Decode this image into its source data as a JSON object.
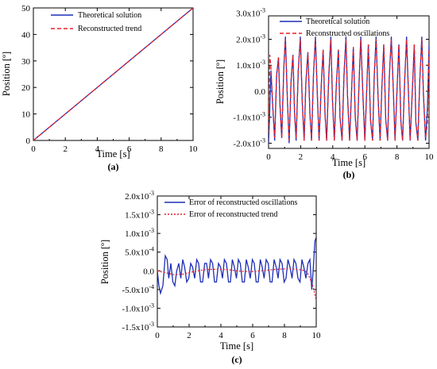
{
  "chart_data": [
    {
      "id": "a",
      "type": "line",
      "caption": "(a)",
      "xlabel": "Time [s]",
      "ylabel": "Position [º]",
      "xlim": [
        0,
        10
      ],
      "ylim": [
        0,
        50
      ],
      "xticks": [
        0,
        2,
        4,
        6,
        8,
        10
      ],
      "yticks": [
        0,
        10,
        20,
        30,
        40,
        50
      ],
      "ytick_labels": [
        "0",
        "10",
        "20",
        "30",
        "40",
        "50"
      ],
      "legend_position": "top-left",
      "series": [
        {
          "name": "Theoretical solution",
          "color": "#1f2fb5",
          "style": "solid",
          "x": [
            0,
            2,
            4,
            6,
            8,
            10
          ],
          "y": [
            0,
            10,
            20,
            30,
            40,
            50
          ]
        },
        {
          "name": "Reconstructed trend",
          "color": "#e8212a",
          "style": "dashed",
          "x": [
            0,
            2,
            4,
            6,
            8,
            10
          ],
          "y": [
            0,
            10,
            20,
            30,
            40,
            50
          ]
        }
      ]
    },
    {
      "id": "b",
      "type": "line",
      "caption": "(b)",
      "xlabel": "Time [s]",
      "ylabel": "Position [º]",
      "xlim": [
        0,
        10
      ],
      "ylim": [
        -0.0022,
        0.0029
      ],
      "xticks": [
        0,
        2,
        4,
        6,
        8,
        10
      ],
      "yticks": [
        -0.002,
        -0.001,
        0,
        0.001,
        0.002,
        0.003
      ],
      "ytick_labels": [
        "-2.0x10-3",
        "-1.0x10-3",
        "0.0",
        "1.0x10-3",
        "2.0x10-3",
        "3.0x10-3"
      ],
      "legend_position": "top-right",
      "series": [
        {
          "name": "Theoretical solution",
          "color": "#1f2fb5",
          "style": "solid",
          "x": [
            0.0,
            0.05,
            0.15,
            0.25,
            0.38,
            0.5,
            0.62,
            0.72,
            0.82,
            0.95,
            1.05,
            1.18,
            1.28,
            1.4,
            1.52,
            1.62,
            1.72,
            1.85,
            1.98,
            2.1,
            2.22,
            2.32,
            2.45,
            2.58,
            2.68,
            2.8,
            2.92,
            3.05,
            3.15,
            3.28,
            3.4,
            3.52,
            3.62,
            3.75,
            3.88,
            3.98,
            4.1,
            4.22,
            4.35,
            4.45,
            4.58,
            4.7,
            4.82,
            4.92,
            5.05,
            5.18,
            5.28,
            5.4,
            5.52,
            5.65,
            5.75,
            5.88,
            6.0,
            6.12,
            6.22,
            6.35,
            6.48,
            6.58,
            6.7,
            6.82,
            6.95,
            7.05,
            7.18,
            7.3,
            7.42,
            7.52,
            7.65,
            7.78,
            7.88,
            8.0,
            8.12,
            8.25,
            8.35,
            8.48,
            8.6,
            8.72,
            8.82,
            8.95,
            9.08,
            9.18,
            9.3,
            9.42,
            9.55,
            9.65,
            9.78,
            9.9,
            10.0
          ],
          "y": [
            -0.002,
            -0.0012,
            0.0008,
            -0.0005,
            -0.0019,
            0.0006,
            0.0013,
            -0.0006,
            -0.0018,
            0.0009,
            0.0021,
            -0.0004,
            -0.002,
            0.0004,
            0.0014,
            -0.0008,
            -0.0019,
            0.0008,
            0.0021,
            -0.0004,
            -0.0019,
            0.0003,
            0.0015,
            -0.0009,
            -0.0019,
            0.0007,
            0.0021,
            -0.0003,
            -0.0019,
            0.0002,
            0.0016,
            -0.0009,
            -0.0019,
            0.0006,
            0.0021,
            -0.0003,
            -0.0019,
            0.0002,
            0.0016,
            -0.001,
            -0.0019,
            0.0006,
            0.0021,
            -0.0002,
            -0.0019,
            0.0001,
            0.0017,
            -0.001,
            -0.0019,
            0.0005,
            0.0021,
            -0.0002,
            -0.0019,
            0.0001,
            0.0018,
            -0.0011,
            -0.0019,
            0.0005,
            0.0021,
            -0.0002,
            -0.0019,
            0.0,
            0.0018,
            -0.0011,
            -0.0019,
            0.0005,
            0.0021,
            -0.0001,
            -0.0019,
            0.0,
            0.0018,
            -0.0012,
            -0.0019,
            0.0004,
            0.0021,
            -0.0001,
            -0.0019,
            -0.0001,
            0.0018,
            -0.0012,
            -0.0019,
            0.0004,
            0.0021,
            -0.0001,
            -0.0019,
            -0.0006,
            0.0018
          ]
        },
        {
          "name": "Reconstructed  oscillations",
          "color": "#e8212a",
          "style": "dashed",
          "x": [
            0.0,
            0.08,
            0.15,
            0.25,
            0.38,
            0.5,
            0.62,
            0.72,
            0.82,
            0.95,
            1.05,
            1.18,
            1.28,
            1.4,
            1.52,
            1.62,
            1.72,
            1.85,
            1.98,
            2.1,
            2.22,
            2.32,
            2.45,
            2.58,
            2.68,
            2.8,
            2.92,
            3.05,
            3.15,
            3.28,
            3.4,
            3.52,
            3.62,
            3.75,
            3.88,
            3.98,
            4.1,
            4.22,
            4.35,
            4.45,
            4.58,
            4.7,
            4.82,
            4.92,
            5.05,
            5.18,
            5.28,
            5.4,
            5.52,
            5.65,
            5.75,
            5.88,
            6.0,
            6.12,
            6.22,
            6.35,
            6.48,
            6.58,
            6.7,
            6.82,
            6.95,
            7.05,
            7.18,
            7.3,
            7.42,
            7.52,
            7.65,
            7.78,
            7.88,
            8.0,
            8.12,
            8.25,
            8.35,
            8.48,
            8.6,
            8.72,
            8.82,
            8.95,
            9.08,
            9.18,
            9.3,
            9.42,
            9.55,
            9.65,
            9.78,
            9.9,
            10.0
          ],
          "y": [
            -0.0016,
            0.0014,
            0.0009,
            -0.0004,
            -0.0018,
            0.0006,
            0.0013,
            -0.0006,
            -0.0018,
            0.0009,
            0.002,
            -0.0004,
            -0.0019,
            0.0004,
            0.0014,
            -0.0008,
            -0.0018,
            0.0008,
            0.002,
            -0.0004,
            -0.0019,
            0.0003,
            0.0015,
            -0.0009,
            -0.0019,
            0.0007,
            0.002,
            -0.0003,
            -0.0019,
            0.0002,
            0.0016,
            -0.0009,
            -0.0019,
            0.0006,
            0.002,
            -0.0003,
            -0.0019,
            0.0002,
            0.0016,
            -0.001,
            -0.0019,
            0.0006,
            0.002,
            -0.0002,
            -0.0019,
            0.0001,
            0.0017,
            -0.001,
            -0.0019,
            0.0005,
            0.002,
            -0.0002,
            -0.0019,
            0.0001,
            0.0018,
            -0.0011,
            -0.0019,
            0.0005,
            0.002,
            -0.0002,
            -0.0019,
            0.0,
            0.0018,
            -0.0011,
            -0.0019,
            0.0005,
            0.002,
            -0.0001,
            -0.0019,
            0.0,
            0.0018,
            -0.0012,
            -0.0019,
            0.0004,
            0.002,
            -0.0001,
            -0.0019,
            -0.0001,
            0.0018,
            -0.0012,
            -0.0019,
            0.0004,
            0.002,
            -0.0001,
            -0.0018,
            -0.0012,
            0.0016
          ]
        }
      ]
    },
    {
      "id": "c",
      "type": "line",
      "caption": "(c)",
      "xlabel": "Time [s]",
      "ylabel": "Position [º]",
      "xlim": [
        0,
        10
      ],
      "ylim": [
        -0.0015,
        0.002
      ],
      "xticks": [
        0,
        2,
        4,
        6,
        8,
        10
      ],
      "yticks": [
        -0.0015,
        -0.001,
        -0.0005,
        0,
        0.0005,
        0.001,
        0.0015,
        0.002
      ],
      "ytick_labels": [
        "-1.5x10-3",
        "-1.0x10-3",
        "-5.0x10-4",
        "0.0",
        "5.0x10-4",
        "1.0x10-3",
        "1.5x10-3",
        "2.0x10-3"
      ],
      "legend_position": "top-right",
      "series": [
        {
          "name": "Error of reconstructed oscillations",
          "color": "#1f2fb5",
          "style": "solid",
          "x": [
            0.0,
            0.1,
            0.2,
            0.35,
            0.5,
            0.62,
            0.72,
            0.85,
            0.98,
            1.1,
            1.22,
            1.35,
            1.48,
            1.6,
            1.72,
            1.85,
            1.98,
            2.1,
            2.22,
            2.35,
            2.48,
            2.6,
            2.72,
            2.85,
            2.98,
            3.1,
            3.22,
            3.35,
            3.48,
            3.6,
            3.72,
            3.85,
            3.98,
            4.1,
            4.22,
            4.35,
            4.48,
            4.6,
            4.72,
            4.85,
            4.98,
            5.1,
            5.22,
            5.35,
            5.48,
            5.6,
            5.72,
            5.85,
            5.98,
            6.1,
            6.22,
            6.35,
            6.48,
            6.6,
            6.72,
            6.85,
            6.98,
            7.1,
            7.22,
            7.35,
            7.48,
            7.6,
            7.72,
            7.85,
            7.98,
            8.1,
            8.22,
            8.35,
            8.48,
            8.6,
            8.72,
            8.85,
            8.98,
            9.1,
            9.22,
            9.35,
            9.48,
            9.6,
            9.72,
            9.82,
            9.92,
            10.0
          ],
          "y": [
            0.0,
            -0.0004,
            -0.0006,
            -0.0004,
            0.0004,
            0.0003,
            -0.0002,
            0.0002,
            -0.0003,
            -0.0004,
            0.0,
            0.0002,
            -0.0002,
            0.0003,
            0.0001,
            -0.0003,
            -0.0002,
            0.0002,
            0.0001,
            -0.0002,
            0.0003,
            0.0002,
            -0.0003,
            -0.0003,
            0.0002,
            0.0002,
            -0.0002,
            0.0003,
            0.0002,
            -0.0003,
            -0.0003,
            0.0002,
            0.0001,
            -0.0002,
            0.0003,
            0.0002,
            -0.0003,
            -0.0003,
            0.0003,
            0.0001,
            -0.0002,
            0.0003,
            0.0002,
            -0.0003,
            -0.0003,
            0.0003,
            0.0001,
            -0.0002,
            0.0003,
            0.0002,
            -0.0003,
            -0.0003,
            0.0003,
            0.0001,
            -0.0002,
            0.0003,
            0.0002,
            -0.0003,
            -0.0003,
            0.0003,
            0.0001,
            -0.0002,
            0.0003,
            0.0002,
            -0.0003,
            -0.0002,
            0.0003,
            0.0001,
            -0.0002,
            0.0003,
            0.0002,
            -0.0002,
            -0.0003,
            0.0003,
            0.0001,
            -0.0002,
            0.0002,
            0.0003,
            -0.0005,
            0.0001,
            0.0008,
            0.0009
          ]
        },
        {
          "name": "Error of reconstructed trend",
          "color": "#e8212a",
          "style": "dotted",
          "x": [
            0.0,
            0.5,
            1.0,
            1.5,
            2.0,
            2.5,
            3.0,
            3.5,
            4.0,
            4.5,
            5.0,
            5.5,
            6.0,
            6.5,
            7.0,
            7.5,
            8.0,
            8.5,
            9.0,
            9.3,
            9.5,
            9.7,
            9.85,
            10.0
          ],
          "y": [
            0.0,
            -5e-05,
            -0.0001,
            -0.0001,
            -5e-05,
            0.0,
            3e-05,
            4e-05,
            4e-05,
            3e-05,
            0.0,
            -2e-05,
            -2e-05,
            0.0,
            2e-05,
            4e-05,
            5e-05,
            5e-05,
            3e-05,
            0.0,
            -0.0001,
            -0.0003,
            -0.0005,
            -0.0008
          ]
        }
      ]
    }
  ]
}
